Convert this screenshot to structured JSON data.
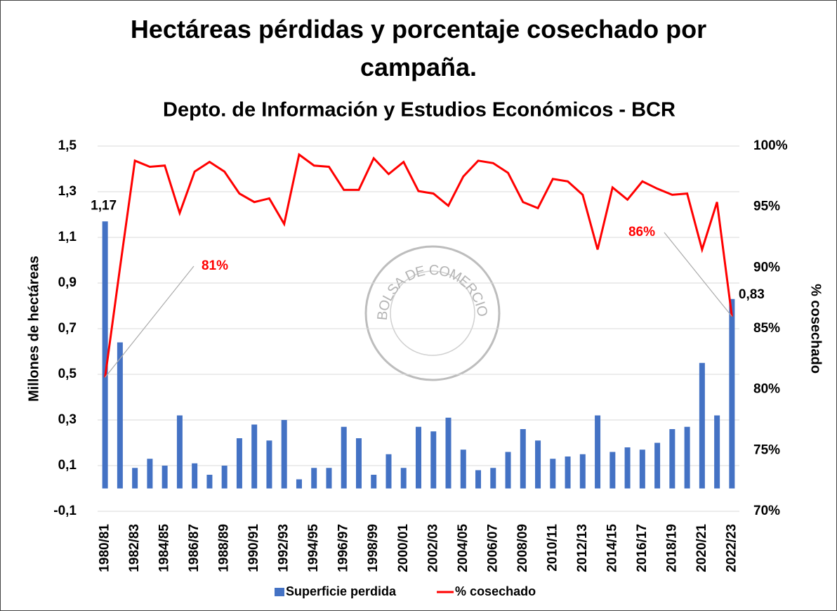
{
  "chart_data": {
    "type": "bar",
    "title": "Hectáreas pérdidas y  porcentaje cosechado por campaña.",
    "subtitle": "Depto. de Información y Estudios Económicos - BCR",
    "watermark": "BOLSA DE COMERCIO DE ROSARIO",
    "y_label": "Millones de hectáreas",
    "y2_label": "% cosechado",
    "categories": [
      "1980/81",
      null,
      "1982/83",
      null,
      "1984/85",
      null,
      "1986/87",
      null,
      "1988/89",
      null,
      "1990/91",
      null,
      "1992/93",
      null,
      "1994/95",
      null,
      "1996/97",
      null,
      "1998/99",
      null,
      "2000/01",
      null,
      "2002/03",
      null,
      "2004/05",
      null,
      "2006/07",
      null,
      "2008/09",
      null,
      "2010/11",
      null,
      "2012/13",
      null,
      "2014/15",
      null,
      "2016/17",
      null,
      "2018/19",
      null,
      "2020/21",
      null,
      "2022/23"
    ],
    "series": [
      {
        "name": "Superficie perdida",
        "type": "bar",
        "color": "#4472c4",
        "values": [
          1.17,
          0.64,
          0.09,
          0.13,
          0.1,
          0.32,
          0.11,
          0.06,
          0.1,
          0.22,
          0.28,
          0.21,
          0.3,
          0.04,
          0.09,
          0.09,
          0.27,
          0.22,
          0.06,
          0.15,
          0.09,
          0.27,
          0.25,
          0.31,
          0.17,
          0.08,
          0.09,
          0.16,
          0.26,
          0.21,
          0.13,
          0.14,
          0.15,
          0.32,
          0.16,
          0.18,
          0.17,
          0.2,
          0.26,
          0.27,
          0.55,
          0.32,
          0.83
        ],
        "value_labels": [
          "1,17",
          null,
          null,
          null,
          null,
          null,
          null,
          null,
          null,
          null,
          null,
          null,
          null,
          null,
          null,
          null,
          null,
          null,
          null,
          null,
          null,
          null,
          null,
          null,
          null,
          null,
          null,
          null,
          null,
          null,
          null,
          null,
          null,
          null,
          null,
          null,
          null,
          null,
          null,
          null,
          null,
          null,
          "0,83"
        ]
      },
      {
        "name": "% cosechado",
        "type": "line",
        "axis": "y2",
        "color": "#ff0000",
        "values": [
          81,
          90,
          98.8,
          98.3,
          98.4,
          94.5,
          97.9,
          98.7,
          97.9,
          96.1,
          95.4,
          95.7,
          93.6,
          99.3,
          98.4,
          98.3,
          96.4,
          96.4,
          99.0,
          97.7,
          98.7,
          96.3,
          96.1,
          95.1,
          97.5,
          98.8,
          98.6,
          97.8,
          95.4,
          94.9,
          97.3,
          97.1,
          96.0,
          91.5,
          96.6,
          95.6,
          97.1,
          96.5,
          96.0,
          96.1,
          91.5,
          95.4,
          86
        ],
        "value_labels": [
          "81%",
          null,
          null,
          null,
          null,
          null,
          null,
          null,
          null,
          null,
          null,
          null,
          null,
          null,
          null,
          null,
          null,
          null,
          null,
          null,
          null,
          null,
          null,
          null,
          null,
          null,
          null,
          null,
          null,
          null,
          null,
          null,
          null,
          null,
          null,
          null,
          null,
          null,
          null,
          null,
          null,
          null,
          "86%"
        ]
      }
    ],
    "ylim": [
      -0.1,
      1.5
    ],
    "yticks": [
      {
        "value": -0.1,
        "label": "-0,1"
      },
      {
        "value": 0.1,
        "label": "0,1"
      },
      {
        "value": 0.3,
        "label": "0,3"
      },
      {
        "value": 0.5,
        "label": "0,5"
      },
      {
        "value": 0.7,
        "label": "0,7"
      },
      {
        "value": 0.9,
        "label": "0,9"
      },
      {
        "value": 1.1,
        "label": "1,1"
      },
      {
        "value": 1.3,
        "label": "1,3"
      },
      {
        "value": 1.5,
        "label": "1,5"
      }
    ],
    "y2lim": [
      70,
      100
    ],
    "y2ticks": [
      {
        "value": 70,
        "label": "70%"
      },
      {
        "value": 75,
        "label": "75%"
      },
      {
        "value": 80,
        "label": "80%"
      },
      {
        "value": 85,
        "label": "85%"
      },
      {
        "value": 90,
        "label": "90%"
      },
      {
        "value": 95,
        "label": "95%"
      },
      {
        "value": 100,
        "label": "100%"
      }
    ],
    "grid": true,
    "legend": "bottom"
  }
}
